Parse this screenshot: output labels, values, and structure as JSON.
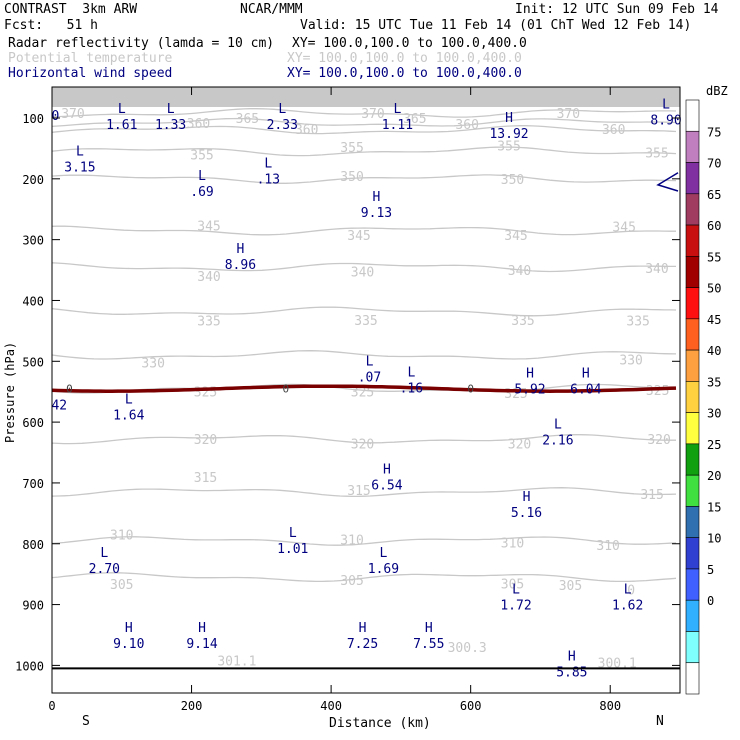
{
  "header": {
    "model": "CONTRAST  3km ARW",
    "center": "NCAR/MMM",
    "init": "Init: 12 UTC Sun 09 Feb 14",
    "fcst": "Fcst:   51 h",
    "valid": "Valid: 15 UTC Tue 11 Feb 14 (01 ChT Wed 12 Feb 14)",
    "fields": [
      {
        "name": "Radar reflectivity (lamda = 10 cm)",
        "xy": "XY= 100.0,100.0 to 100.0,400.0",
        "color": "#000000"
      },
      {
        "name": "Potential temperature",
        "xy": "XY= 100.0,100.0 to 100.0,400.0",
        "color": "#c8c8c8"
      },
      {
        "name": "Horizontal wind speed",
        "xy": "XY= 100.0,100.0 to 100.0,400.0",
        "color": "#000080"
      }
    ]
  },
  "chart_data": {
    "type": "cross-section",
    "xlabel": "Distance (km)",
    "ylabel": "Pressure (hPa)",
    "xlim": [
      0,
      900
    ],
    "ylim": [
      1050,
      70
    ],
    "x_ticks": [
      0,
      200,
      400,
      600,
      800
    ],
    "y_ticks": [
      100,
      200,
      300,
      400,
      500,
      600,
      700,
      800,
      900,
      1000
    ],
    "direction_left": "S",
    "direction_right": "N",
    "theta_isentropes": [
      {
        "label": "370",
        "p": 92
      },
      {
        "label": "365",
        "p": 108
      },
      {
        "label": "360",
        "p": 120
      },
      {
        "label": "355",
        "p": 155
      },
      {
        "label": "350",
        "p": 200
      },
      {
        "label": "345",
        "p": 285
      },
      {
        "label": "340",
        "p": 345
      },
      {
        "label": "335",
        "p": 418
      },
      {
        "label": "330",
        "p": 490
      },
      {
        "label": "325",
        "p": 545
      },
      {
        "label": "320",
        "p": 628
      },
      {
        "label": "315",
        "p": 715
      },
      {
        "label": "310",
        "p": 795
      },
      {
        "label": "305",
        "p": 855
      }
    ],
    "theta_labels": [
      {
        "text": "370",
        "x": 30,
        "p": 92
      },
      {
        "text": "365",
        "x": 280,
        "p": 100
      },
      {
        "text": "370",
        "x": 460,
        "p": 92
      },
      {
        "text": "365",
        "x": 520,
        "p": 100
      },
      {
        "text": "370",
        "x": 740,
        "p": 92
      },
      {
        "text": "360",
        "x": 210,
        "p": 108
      },
      {
        "text": "360",
        "x": 365,
        "p": 118
      },
      {
        "text": "360",
        "x": 595,
        "p": 110
      },
      {
        "text": "360",
        "x": 805,
        "p": 118
      },
      {
        "text": "355",
        "x": 215,
        "p": 160
      },
      {
        "text": "355",
        "x": 430,
        "p": 148
      },
      {
        "text": "355",
        "x": 655,
        "p": 145
      },
      {
        "text": "355",
        "x": 867,
        "p": 157
      },
      {
        "text": "350",
        "x": 430,
        "p": 195
      },
      {
        "text": "350",
        "x": 660,
        "p": 200
      },
      {
        "text": "345",
        "x": 225,
        "p": 277
      },
      {
        "text": "345",
        "x": 440,
        "p": 292
      },
      {
        "text": "345",
        "x": 665,
        "p": 292
      },
      {
        "text": "345",
        "x": 820,
        "p": 278
      },
      {
        "text": "340",
        "x": 225,
        "p": 360
      },
      {
        "text": "340",
        "x": 445,
        "p": 352
      },
      {
        "text": "340",
        "x": 670,
        "p": 350
      },
      {
        "text": "340",
        "x": 867,
        "p": 347
      },
      {
        "text": "335",
        "x": 225,
        "p": 433
      },
      {
        "text": "335",
        "x": 450,
        "p": 432
      },
      {
        "text": "335",
        "x": 675,
        "p": 432
      },
      {
        "text": "335",
        "x": 840,
        "p": 433
      },
      {
        "text": "330",
        "x": 145,
        "p": 502
      },
      {
        "text": "330",
        "x": 830,
        "p": 497
      },
      {
        "text": "325",
        "x": 220,
        "p": 550
      },
      {
        "text": "325",
        "x": 445,
        "p": 550
      },
      {
        "text": "325",
        "x": 665,
        "p": 552
      },
      {
        "text": "325",
        "x": 868,
        "p": 547
      },
      {
        "text": "320",
        "x": 220,
        "p": 628
      },
      {
        "text": "320",
        "x": 445,
        "p": 635
      },
      {
        "text": "320",
        "x": 670,
        "p": 635
      },
      {
        "text": "320",
        "x": 870,
        "p": 628
      },
      {
        "text": "315",
        "x": 220,
        "p": 690
      },
      {
        "text": "315",
        "x": 440,
        "p": 712
      },
      {
        "text": "315",
        "x": 860,
        "p": 718
      },
      {
        "text": "310",
        "x": 100,
        "p": 785
      },
      {
        "text": "310",
        "x": 430,
        "p": 793
      },
      {
        "text": "310",
        "x": 660,
        "p": 798
      },
      {
        "text": "310",
        "x": 797,
        "p": 802
      },
      {
        "text": "305",
        "x": 100,
        "p": 866
      },
      {
        "text": "305",
        "x": 430,
        "p": 860
      },
      {
        "text": "305",
        "x": 660,
        "p": 865
      },
      {
        "text": "305",
        "x": 743,
        "p": 868
      },
      {
        "text": "301.1",
        "x": 265,
        "p": 992
      },
      {
        "text": "300.3",
        "x": 595,
        "p": 970
      },
      {
        "text": "300.1",
        "x": 810,
        "p": 995
      },
      {
        "text": "0",
        "x": 830,
        "p": 875
      }
    ],
    "wind_extrema": [
      {
        "type": "L",
        "value": "1.61",
        "x": 100,
        "p": 95
      },
      {
        "type": "L",
        "value": "1.33",
        "x": 170,
        "p": 95
      },
      {
        "type": "L",
        "value": "2.33",
        "x": 330,
        "p": 95
      },
      {
        "type": "L",
        "value": "1.11",
        "x": 495,
        "p": 95
      },
      {
        "type": "H",
        "value": "13.92",
        "x": 655,
        "p": 110
      },
      {
        "type": "L",
        "value": "8.90",
        "x": 880,
        "p": 88
      },
      {
        "type": "L",
        "value": "3.15",
        "x": 40,
        "p": 165
      },
      {
        "type": "L",
        "value": ".13",
        "x": 310,
        "p": 185
      },
      {
        "type": "L",
        "value": ".69",
        "x": 215,
        "p": 205
      },
      {
        "type": "H",
        "value": "9.13",
        "x": 465,
        "p": 240
      },
      {
        "type": "H",
        "value": "8.96",
        "x": 270,
        "p": 325
      },
      {
        "type": "L",
        "value": ".07",
        "x": 455,
        "p": 510
      },
      {
        "type": "L",
        "value": ".16",
        "x": 515,
        "p": 528
      },
      {
        "type": "H",
        "value": "5.92",
        "x": 685,
        "p": 530
      },
      {
        "type": "H",
        "value": "6.04",
        "x": 765,
        "p": 530
      },
      {
        "type": "L",
        "value": "1.64",
        "x": 110,
        "p": 573
      },
      {
        "type": "L",
        "value": "2.16",
        "x": 725,
        "p": 614
      },
      {
        "type": "H",
        "value": "6.54",
        "x": 480,
        "p": 688
      },
      {
        "type": "H",
        "value": "5.16",
        "x": 680,
        "p": 733
      },
      {
        "type": "L",
        "value": "1.01",
        "x": 345,
        "p": 792
      },
      {
        "type": "L",
        "value": "2.70",
        "x": 75,
        "p": 825
      },
      {
        "type": "L",
        "value": "1.69",
        "x": 475,
        "p": 825
      },
      {
        "type": "L",
        "value": "1.72",
        "x": 665,
        "p": 885
      },
      {
        "type": "L",
        "value": "1.62",
        "x": 825,
        "p": 885
      },
      {
        "type": "H",
        "value": "9.10",
        "x": 110,
        "p": 948
      },
      {
        "type": "H",
        "value": "9.14",
        "x": 215,
        "p": 948
      },
      {
        "type": "H",
        "value": "7.25",
        "x": 445,
        "p": 948
      },
      {
        "type": "H",
        "value": "7.55",
        "x": 540,
        "p": 948
      },
      {
        "type": "H",
        "value": "5.85",
        "x": 745,
        "p": 995
      }
    ],
    "edge_values": [
      {
        "text": "0",
        "x": 5,
        "p": 95
      },
      {
        "text": "42",
        "x": 5,
        "p": 571
      }
    ],
    "zero_contour_labels": [
      "0",
      "0",
      "0"
    ],
    "legend": {
      "title": "dBZ",
      "levels": [
        "75",
        "70",
        "65",
        "60",
        "55",
        "50",
        "45",
        "40",
        "35",
        "30",
        "25",
        "20",
        "15",
        "10",
        "5",
        "0"
      ],
      "colors": [
        "#ffffff",
        "#c080c0",
        "#8030a0",
        "#a03c60",
        "#c81010",
        "#a00000",
        "#ff1010",
        "#ff6020",
        "#ffa040",
        "#ffd040",
        "#ffff40",
        "#10a010",
        "#40e040",
        "#3070b0",
        "#3040d0",
        "#4060ff",
        "#30b0ff",
        "#80ffff",
        "#ffffff"
      ]
    }
  }
}
